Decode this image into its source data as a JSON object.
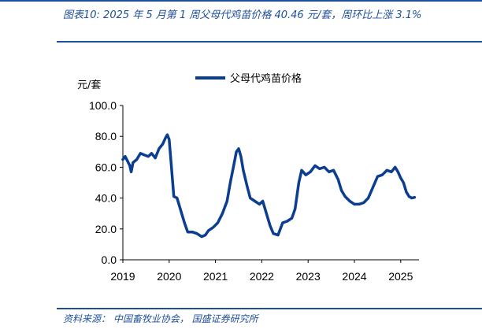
{
  "header": {
    "title": "图表10:  2025 年 5 月第 1 周父母代鸡苗价格 40.46 元/套，周环比上涨 3.1%"
  },
  "footer": {
    "source": "资料来源：  中国畜牧业协会， 国盛证券研究所"
  },
  "colors": {
    "accent": "#1f4e9c",
    "series": "#0b3d91"
  },
  "chart_data": {
    "type": "line",
    "title": "",
    "ylabel": "元/套",
    "xlabel": "",
    "ylim": [
      0,
      100
    ],
    "xlim": [
      2019.0,
      2025.4
    ],
    "yticks": [
      "0.0",
      "20.0",
      "40.0",
      "60.0",
      "80.0",
      "100.0"
    ],
    "xticks": [
      "2019",
      "2020",
      "2021",
      "2022",
      "2023",
      "2024",
      "2025"
    ],
    "legend": "top-center",
    "series": [
      {
        "name": "父母代鸡苗价格",
        "points": [
          [
            2019.0,
            65
          ],
          [
            2019.05,
            67
          ],
          [
            2019.1,
            64
          ],
          [
            2019.15,
            61
          ],
          [
            2019.18,
            57
          ],
          [
            2019.22,
            63
          ],
          [
            2019.3,
            65
          ],
          [
            2019.38,
            69
          ],
          [
            2019.46,
            68
          ],
          [
            2019.55,
            67
          ],
          [
            2019.62,
            69
          ],
          [
            2019.7,
            66
          ],
          [
            2019.78,
            72
          ],
          [
            2019.86,
            75
          ],
          [
            2019.92,
            79
          ],
          [
            2019.96,
            81
          ],
          [
            2020.0,
            78
          ],
          [
            2020.05,
            60
          ],
          [
            2020.1,
            41
          ],
          [
            2020.17,
            40
          ],
          [
            2020.25,
            32
          ],
          [
            2020.33,
            24
          ],
          [
            2020.4,
            18
          ],
          [
            2020.5,
            18
          ],
          [
            2020.6,
            17
          ],
          [
            2020.7,
            15
          ],
          [
            2020.78,
            16
          ],
          [
            2020.85,
            19
          ],
          [
            2020.95,
            21
          ],
          [
            2021.05,
            24
          ],
          [
            2021.15,
            30
          ],
          [
            2021.25,
            38
          ],
          [
            2021.32,
            50
          ],
          [
            2021.4,
            62
          ],
          [
            2021.45,
            70
          ],
          [
            2021.5,
            72
          ],
          [
            2021.55,
            67
          ],
          [
            2021.6,
            58
          ],
          [
            2021.68,
            48
          ],
          [
            2021.75,
            40
          ],
          [
            2021.85,
            38
          ],
          [
            2021.95,
            36
          ],
          [
            2022.02,
            38
          ],
          [
            2022.1,
            30
          ],
          [
            2022.18,
            22
          ],
          [
            2022.25,
            17
          ],
          [
            2022.35,
            16
          ],
          [
            2022.45,
            24
          ],
          [
            2022.55,
            25
          ],
          [
            2022.65,
            27
          ],
          [
            2022.72,
            33
          ],
          [
            2022.8,
            50
          ],
          [
            2022.86,
            58
          ],
          [
            2022.95,
            55
          ],
          [
            2023.05,
            57
          ],
          [
            2023.15,
            61
          ],
          [
            2023.25,
            59
          ],
          [
            2023.35,
            60
          ],
          [
            2023.45,
            57
          ],
          [
            2023.55,
            58
          ],
          [
            2023.65,
            52
          ],
          [
            2023.72,
            45
          ],
          [
            2023.8,
            41
          ],
          [
            2023.9,
            38
          ],
          [
            2024.0,
            36
          ],
          [
            2024.1,
            36
          ],
          [
            2024.2,
            37
          ],
          [
            2024.3,
            40
          ],
          [
            2024.4,
            47
          ],
          [
            2024.5,
            54
          ],
          [
            2024.6,
            55
          ],
          [
            2024.7,
            58
          ],
          [
            2024.8,
            57
          ],
          [
            2024.88,
            60
          ],
          [
            2024.94,
            57
          ],
          [
            2025.0,
            53
          ],
          [
            2025.06,
            50
          ],
          [
            2025.12,
            44
          ],
          [
            2025.18,
            41
          ],
          [
            2025.24,
            40
          ],
          [
            2025.3,
            40.46
          ]
        ]
      }
    ]
  }
}
